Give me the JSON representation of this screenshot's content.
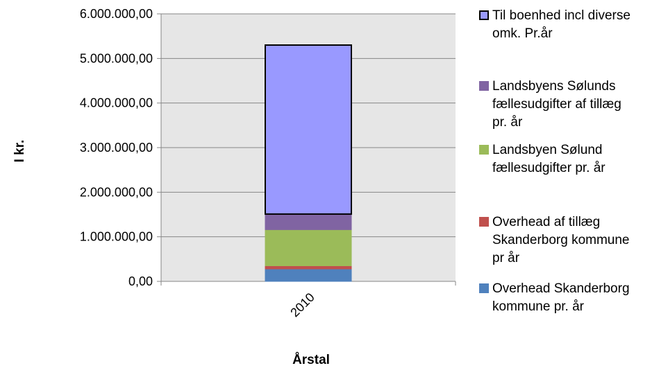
{
  "chart_data": {
    "type": "bar",
    "stacked": true,
    "categories": [
      "2010"
    ],
    "series": [
      {
        "name": "Overhead  Skanderborg kommune pr. år",
        "values": [
          280000
        ],
        "color": "#4F81BD"
      },
      {
        "name": "Overhead af tillæg Skanderborg kommune pr år",
        "values": [
          70000
        ],
        "color": "#C0504D"
      },
      {
        "name": "Landsbyen Sølund fællesudgifter pr. år",
        "values": [
          810000
        ],
        "color": "#9BBB59"
      },
      {
        "name": "Landsbyens Sølunds fællesudgifter af tillæg pr. år",
        "values": [
          350000
        ],
        "color": "#8064A2"
      },
      {
        "name": "Til boenhed incl diverse omk. Pr.år",
        "values": [
          3790000
        ],
        "color": "#9999FF"
      }
    ],
    "xlabel": "Årstal",
    "ylabel": "I kr.",
    "ylim": [
      0,
      6000000
    ],
    "yticks": [
      "0,00",
      "1.000.000,00",
      "2.000.000,00",
      "3.000.000,00",
      "4.000.000,00",
      "5.000.000,00",
      "6.000.000,00"
    ],
    "plot_background": "#E6E6E6",
    "grid": true,
    "legend_position": "right",
    "legend": [
      {
        "label": "Til boenhed incl diverse\nomk. Pr.år",
        "color": "#9999FF"
      },
      {
        "label": "Landsbyens Sølunds\nfællesudgifter af tillæg\npr. år",
        "color": "#8064A2"
      },
      {
        "label": "Landsbyen Sølund\nfællesudgifter pr. år",
        "color": "#9BBB59"
      },
      {
        "label": "Overhead af tillæg\nSkanderborg kommune\npr år",
        "color": "#C0504D"
      },
      {
        "label": "Overhead  Skanderborg\nkommune pr. år",
        "color": "#4F81BD"
      }
    ]
  }
}
